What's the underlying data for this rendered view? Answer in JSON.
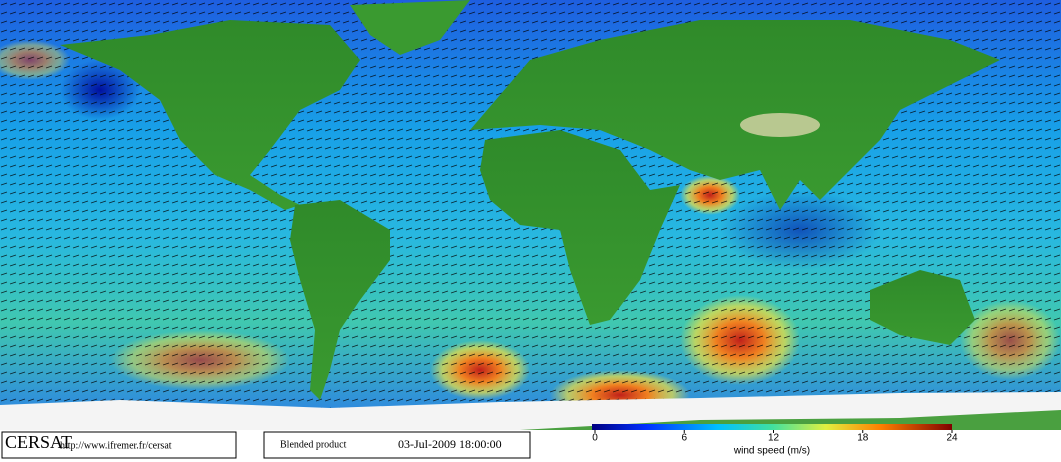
{
  "header": {
    "logo": "CERSAT",
    "url": "http://www.ifremer.fr/cersat"
  },
  "product": {
    "name": "Blended product",
    "datetime": "03-Jul-2009 18:00:00"
  },
  "colorbar": {
    "label": "wind speed (m/s)",
    "lim": [
      0,
      24
    ],
    "ticks": [
      0,
      6,
      12,
      18,
      24
    ]
  }
}
